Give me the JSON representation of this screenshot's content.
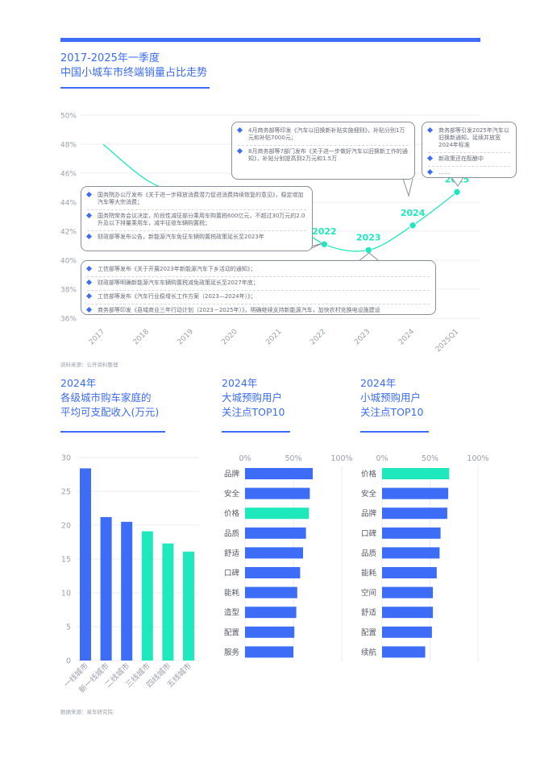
{
  "header": {
    "title_line1": "2017-2025年一季度",
    "title_line2": "中国小城车市终端销量占比走势"
  },
  "line_chart_source": "资料来源：公开资料整理",
  "callouts": {
    "c2025": [
      "商务部等引发2025年汽车以旧换新通知，延续并放宽2024年标准",
      "新政策还在酝酿中",
      "……"
    ],
    "c2024": [
      "4月商务部等印发《汽车以旧换新补贴实施细则》，补贴分别1万元和补贴7000元；",
      "8月商务部等7部门发布《关于进一步做好汽车以旧换新工作的通知》，补贴分别提高到2万元和1.5万"
    ],
    "c2022": [
      "国务院办公厅发布《关于进一步释放消费潜力促进消费持续恢复的意见》，稳定增加汽车等大宗消费；",
      "国务院常务会议决定，阶段性减征部分乘用车购置税600亿元，不超过30万元的2.0升及以下排量乘用车，减半征收车辆购置税；",
      "财政部等发布公告，新能源汽车免征车辆购置税政策延长至2023年"
    ],
    "c2023": [
      "工信部等发布《关于开展2023年新能源汽车下乡活动的通知》；",
      "财政部等明确新能源汽车车辆购置税减免政策延长至2027年底；",
      "工信部等发布《汽车行业稳增长工作方案（2023—2024年）》；",
      "商务部等印发《县域商业三年行动计划（2023－2025年）》，明确继续支持新能源汽车，加快农村充换电设施建设"
    ]
  },
  "sections": {
    "income_title": [
      "2024年",
      "各级城市购车家庭的",
      "平均可支配收入(万元)"
    ],
    "big_city_title": [
      "2024年",
      "大城预购用户",
      "关注点TOP10"
    ],
    "small_city_title": [
      "2024年",
      "小城预购用户",
      "关注点TOP10"
    ]
  },
  "bottom_source": "数据来源：易车研究院",
  "colors": {
    "blue": "#3d6cf7",
    "teal": "#1de9bd",
    "line": "#1de9bd",
    "grid": "#e6e8ec",
    "axis": "#9aa0ab"
  },
  "chart_data": [
    {
      "type": "line",
      "x": [
        "2017",
        "2018",
        "2019",
        "2020",
        "2021",
        "2022",
        "2023",
        "2024",
        "2025Q1"
      ],
      "y": [
        48.0,
        45.5,
        44.3,
        43.6,
        43.2,
        41.1,
        40.7,
        42.4,
        44.7
      ],
      "point_labels": {
        "2022": "2022",
        "2023": "2023",
        "2024": "2024",
        "2025Q1": "2025"
      },
      "ylim": [
        36,
        50
      ],
      "yticks": [
        "36%",
        "38%",
        "40%",
        "42%",
        "44%",
        "46%",
        "48%",
        "50%"
      ],
      "grid": true
    },
    {
      "type": "bar",
      "categories": [
        "一线城市",
        "新一线城市",
        "二线城市",
        "三线城市",
        "四线城市",
        "五线城市"
      ],
      "values": [
        28.4,
        21.2,
        20.5,
        19.1,
        17.3,
        16.1
      ],
      "highlight": [
        false,
        false,
        false,
        true,
        true,
        true
      ],
      "ylim": [
        0,
        30
      ],
      "yticks": [
        "0",
        "5",
        "10",
        "15",
        "20",
        "25",
        "30"
      ],
      "grid": true
    },
    {
      "type": "bar",
      "orientation": "horizontal",
      "categories": [
        "品牌",
        "安全",
        "价格",
        "品质",
        "舒适",
        "口碑",
        "能耗",
        "造型",
        "配置",
        "服务"
      ],
      "values": [
        70,
        67,
        66,
        63,
        60,
        57,
        54,
        53,
        51,
        50
      ],
      "highlight_category": "价格",
      "xticks": [
        "0%",
        "50%",
        "100%"
      ],
      "xlim": [
        0,
        100
      ]
    },
    {
      "type": "bar",
      "orientation": "horizontal",
      "categories": [
        "价格",
        "安全",
        "品牌",
        "口碑",
        "品质",
        "能耗",
        "空间",
        "舒适",
        "配置",
        "续航"
      ],
      "values": [
        70,
        69,
        68,
        61,
        60,
        57,
        53,
        53,
        52,
        45
      ],
      "highlight_category": "价格",
      "xticks": [
        "0%",
        "50%",
        "100%"
      ],
      "xlim": [
        0,
        100
      ]
    }
  ]
}
